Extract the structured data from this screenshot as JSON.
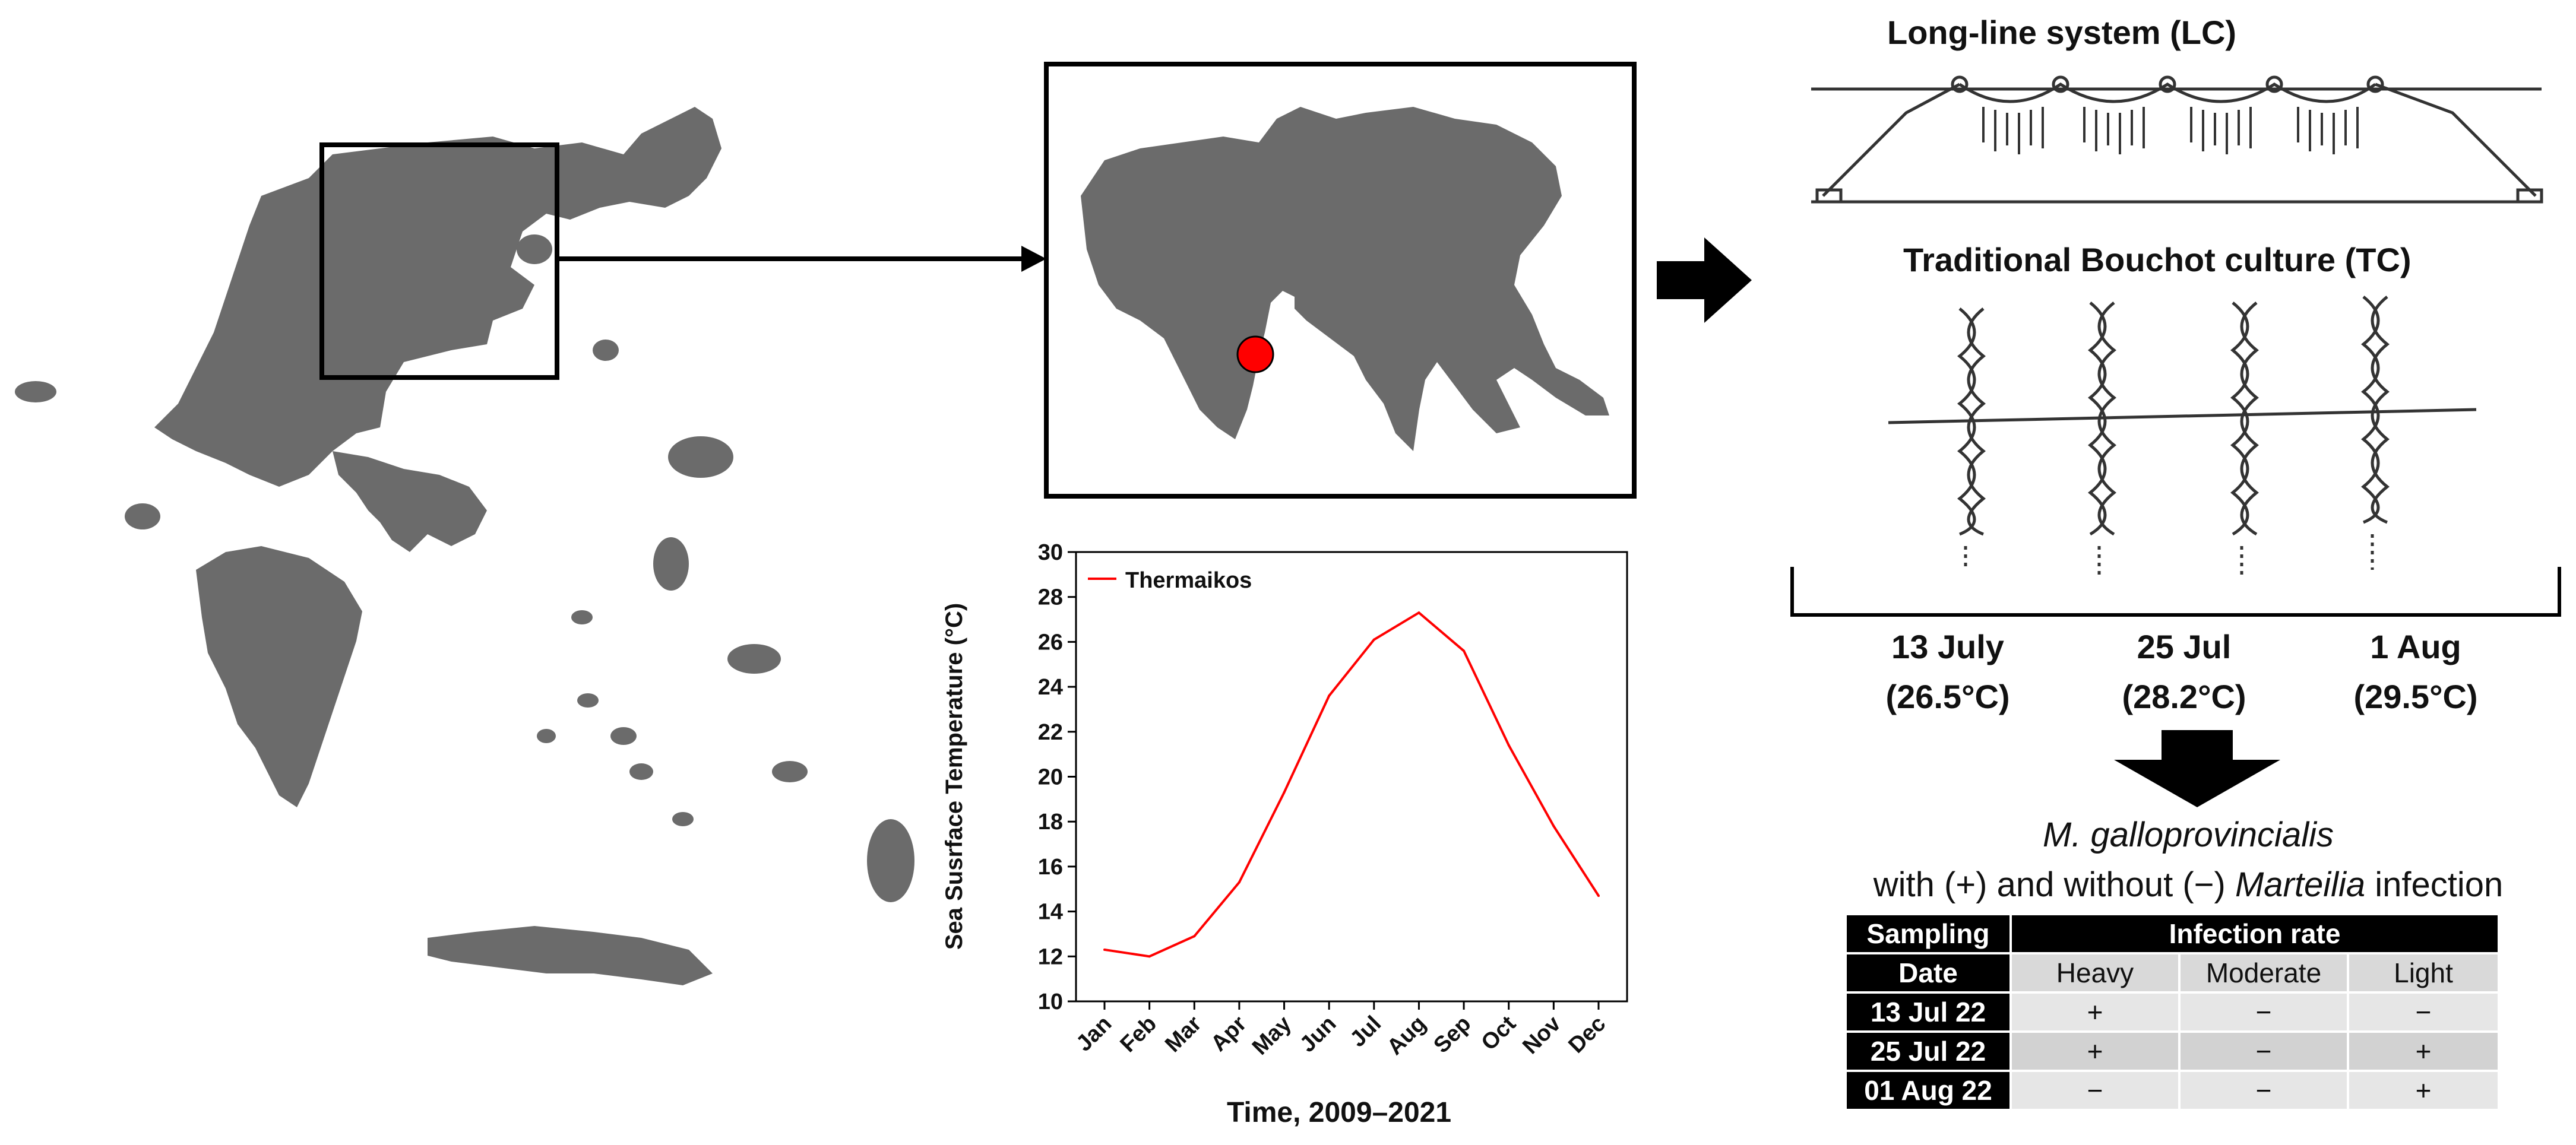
{
  "map_inset": {
    "marker_color": "#ff0000"
  },
  "chart_data": {
    "type": "line",
    "categories": [
      "Jan",
      "Feb",
      "Mar",
      "Apr",
      "May",
      "Jun",
      "Jul",
      "Aug",
      "Sep",
      "Oct",
      "Nov",
      "Dec"
    ],
    "series": [
      {
        "name": "Thermaikos",
        "color": "#ff0000",
        "values": [
          12.3,
          12.0,
          12.9,
          15.3,
          19.3,
          23.6,
          26.1,
          27.3,
          25.6,
          21.4,
          17.8,
          14.7
        ]
      }
    ],
    "xlabel": "Time, 2009–2021",
    "ylabel": "Sea Susrface Temperature (°C)",
    "ylim": [
      10,
      30
    ],
    "yticks": [
      "10",
      "12",
      "14",
      "16",
      "18",
      "20",
      "22",
      "24",
      "26",
      "28",
      "30"
    ],
    "grid": false,
    "legend": "top-left"
  },
  "culture": {
    "long_line_title": "Long-line system (LC)",
    "bouchot_title": "Traditional Bouchot culture (TC)"
  },
  "sampling_dates": [
    {
      "date": "13 July",
      "temp": "(26.5°C)"
    },
    {
      "date": "25 Jul",
      "temp": "(28.2°C)"
    },
    {
      "date": "1 Aug",
      "temp": "(29.5°C)"
    }
  ],
  "result": {
    "species": "M. galloprovincialis",
    "line2_pre": "with (+) and without (−) ",
    "genus": "Marteilia",
    "line2_post": " infection"
  },
  "infection_table": {
    "header_sampling": "Sampling",
    "header_date": "Date",
    "header_rate": "Infection rate",
    "levels": [
      "Heavy",
      "Moderate",
      "Light"
    ],
    "rows": [
      {
        "date": "13 Jul 22",
        "values": [
          "+",
          "−",
          "−"
        ]
      },
      {
        "date": "25 Jul 22",
        "values": [
          "+",
          "−",
          "+"
        ]
      },
      {
        "date": "01 Aug 22",
        "values": [
          "−",
          "−",
          "+"
        ]
      }
    ]
  }
}
